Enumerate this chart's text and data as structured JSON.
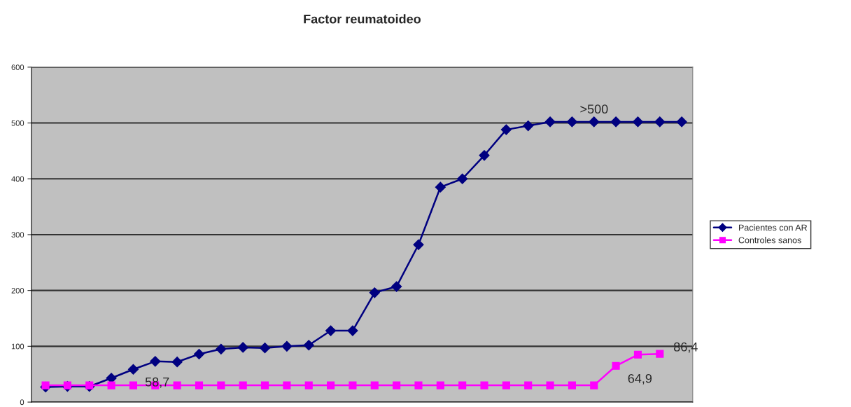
{
  "chart_data": {
    "type": "line",
    "title": "Factor reumatoideo",
    "categories": [
      null,
      null,
      null,
      null,
      null,
      null,
      null,
      null,
      null,
      null,
      null,
      null,
      null,
      null,
      null,
      null,
      null,
      null,
      null,
      null,
      null,
      null,
      null,
      null,
      null,
      null,
      null,
      null,
      null,
      null
    ],
    "series": [
      {
        "name": "Pacientes con AR",
        "color": "#000080",
        "marker": "diamond",
        "values": [
          27,
          28,
          28,
          43,
          58.7,
          73,
          72,
          86,
          95,
          98,
          97,
          100,
          102,
          128,
          128,
          196,
          207,
          282,
          385,
          400,
          442,
          488,
          495,
          502,
          502,
          502,
          502,
          502,
          502,
          502
        ],
        "value_labels": [
          null,
          null,
          null,
          null,
          "58,7",
          null,
          null,
          null,
          null,
          null,
          null,
          null,
          null,
          null,
          null,
          null,
          null,
          null,
          null,
          null,
          null,
          null,
          null,
          null,
          ">500",
          null,
          null,
          null,
          null,
          null
        ]
      },
      {
        "name": "Controles sanos",
        "color": "#ff00ff",
        "marker": "square",
        "values": [
          30,
          30,
          30,
          30,
          30,
          30,
          30,
          30,
          30,
          30,
          30,
          30,
          30,
          30,
          30,
          30,
          30,
          30,
          30,
          30,
          30,
          30,
          30,
          30,
          30,
          30,
          64.9,
          85,
          86.4,
          null
        ],
        "value_labels": [
          null,
          null,
          null,
          null,
          null,
          null,
          null,
          null,
          null,
          null,
          null,
          null,
          null,
          null,
          null,
          null,
          null,
          null,
          null,
          null,
          null,
          null,
          null,
          null,
          null,
          null,
          "64,9",
          null,
          "86,4",
          null
        ]
      }
    ],
    "ylim": [
      0,
      600
    ],
    "yticks": [
      0,
      100,
      200,
      300,
      400,
      500,
      600
    ],
    "grid": "y",
    "legend": "right",
    "line_style": "solid"
  }
}
